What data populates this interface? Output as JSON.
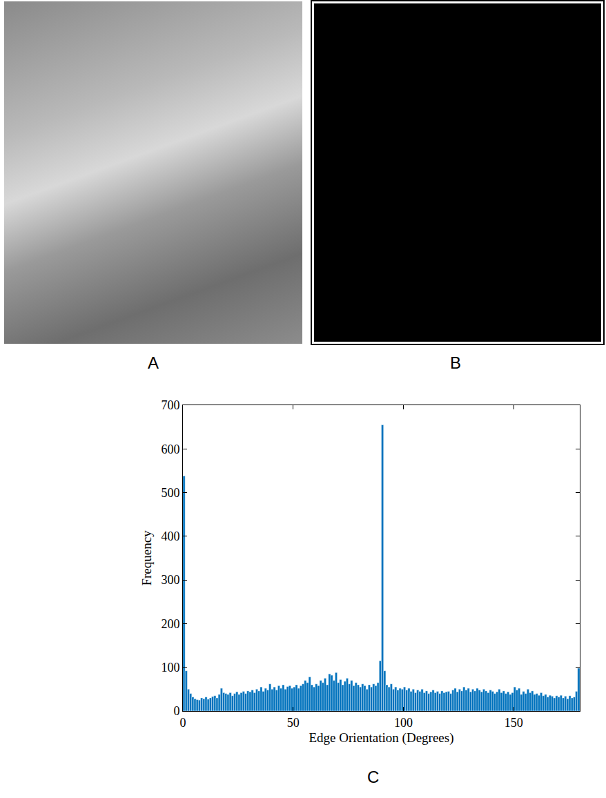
{
  "panel_labels": [
    "A",
    "B",
    "C"
  ],
  "chart_data": {
    "type": "histogram",
    "x_label": "Edge Orientation (Degrees)",
    "y_label": "Frequency",
    "color": "#0072bd",
    "grid": false,
    "xlim": [
      0,
      180
    ],
    "ylim": [
      0,
      700
    ],
    "xticks": [
      0,
      50,
      100,
      150
    ],
    "yticks": [
      0,
      100,
      200,
      300,
      400,
      500,
      600,
      700
    ],
    "bins": [
      0,
      1,
      2,
      3,
      4,
      5,
      6,
      7,
      8,
      9,
      10,
      11,
      12,
      13,
      14,
      15,
      16,
      17,
      18,
      19,
      20,
      21,
      22,
      23,
      24,
      25,
      26,
      27,
      28,
      29,
      30,
      31,
      32,
      33,
      34,
      35,
      36,
      37,
      38,
      39,
      40,
      41,
      42,
      43,
      44,
      45,
      46,
      47,
      48,
      49,
      50,
      51,
      52,
      53,
      54,
      55,
      56,
      57,
      58,
      59,
      60,
      61,
      62,
      63,
      64,
      65,
      66,
      67,
      68,
      69,
      70,
      71,
      72,
      73,
      74,
      75,
      76,
      77,
      78,
      79,
      80,
      81,
      82,
      83,
      84,
      85,
      86,
      87,
      88,
      89,
      90,
      91,
      92,
      93,
      94,
      95,
      96,
      97,
      98,
      99,
      100,
      101,
      102,
      103,
      104,
      105,
      106,
      107,
      108,
      109,
      110,
      111,
      112,
      113,
      114,
      115,
      116,
      117,
      118,
      119,
      120,
      121,
      122,
      123,
      124,
      125,
      126,
      127,
      128,
      129,
      130,
      131,
      132,
      133,
      134,
      135,
      136,
      137,
      138,
      139,
      140,
      141,
      142,
      143,
      144,
      145,
      146,
      147,
      148,
      149,
      150,
      151,
      152,
      153,
      154,
      155,
      156,
      157,
      158,
      159,
      160,
      161,
      162,
      163,
      164,
      165,
      166,
      167,
      168,
      169,
      170,
      171,
      172,
      173,
      174,
      175,
      176,
      177,
      178,
      179,
      180
    ],
    "values": [
      538,
      92,
      50,
      40,
      32,
      28,
      26,
      25,
      30,
      28,
      32,
      27,
      30,
      33,
      35,
      30,
      38,
      52,
      42,
      40,
      38,
      42,
      35,
      40,
      44,
      38,
      42,
      45,
      40,
      46,
      44,
      48,
      42,
      50,
      46,
      55,
      45,
      52,
      48,
      62,
      50,
      55,
      48,
      58,
      52,
      60,
      50,
      56,
      58,
      52,
      55,
      60,
      52,
      58,
      62,
      70,
      65,
      78,
      60,
      55,
      62,
      58,
      70,
      65,
      75,
      60,
      85,
      82,
      70,
      88,
      65,
      72,
      60,
      68,
      75,
      62,
      70,
      58,
      65,
      60,
      55,
      62,
      58,
      50,
      60,
      55,
      62,
      58,
      65,
      115,
      655,
      92,
      60,
      55,
      62,
      50,
      55,
      48,
      52,
      50,
      55,
      48,
      52,
      45,
      50,
      42,
      48,
      45,
      50,
      42,
      46,
      40,
      44,
      48,
      42,
      45,
      40,
      46,
      42,
      44,
      45,
      40,
      48,
      52,
      44,
      50,
      46,
      55,
      48,
      52,
      44,
      50,
      46,
      52,
      48,
      44,
      50,
      46,
      42,
      48,
      45,
      40,
      44,
      50,
      42,
      46,
      40,
      44,
      38,
      42,
      55,
      48,
      52,
      38,
      45,
      40,
      50,
      42,
      46,
      38,
      40,
      36,
      42,
      35,
      38,
      32,
      36,
      34,
      30,
      35,
      32,
      36,
      30,
      34,
      28,
      35,
      30,
      32,
      45,
      98
    ]
  }
}
